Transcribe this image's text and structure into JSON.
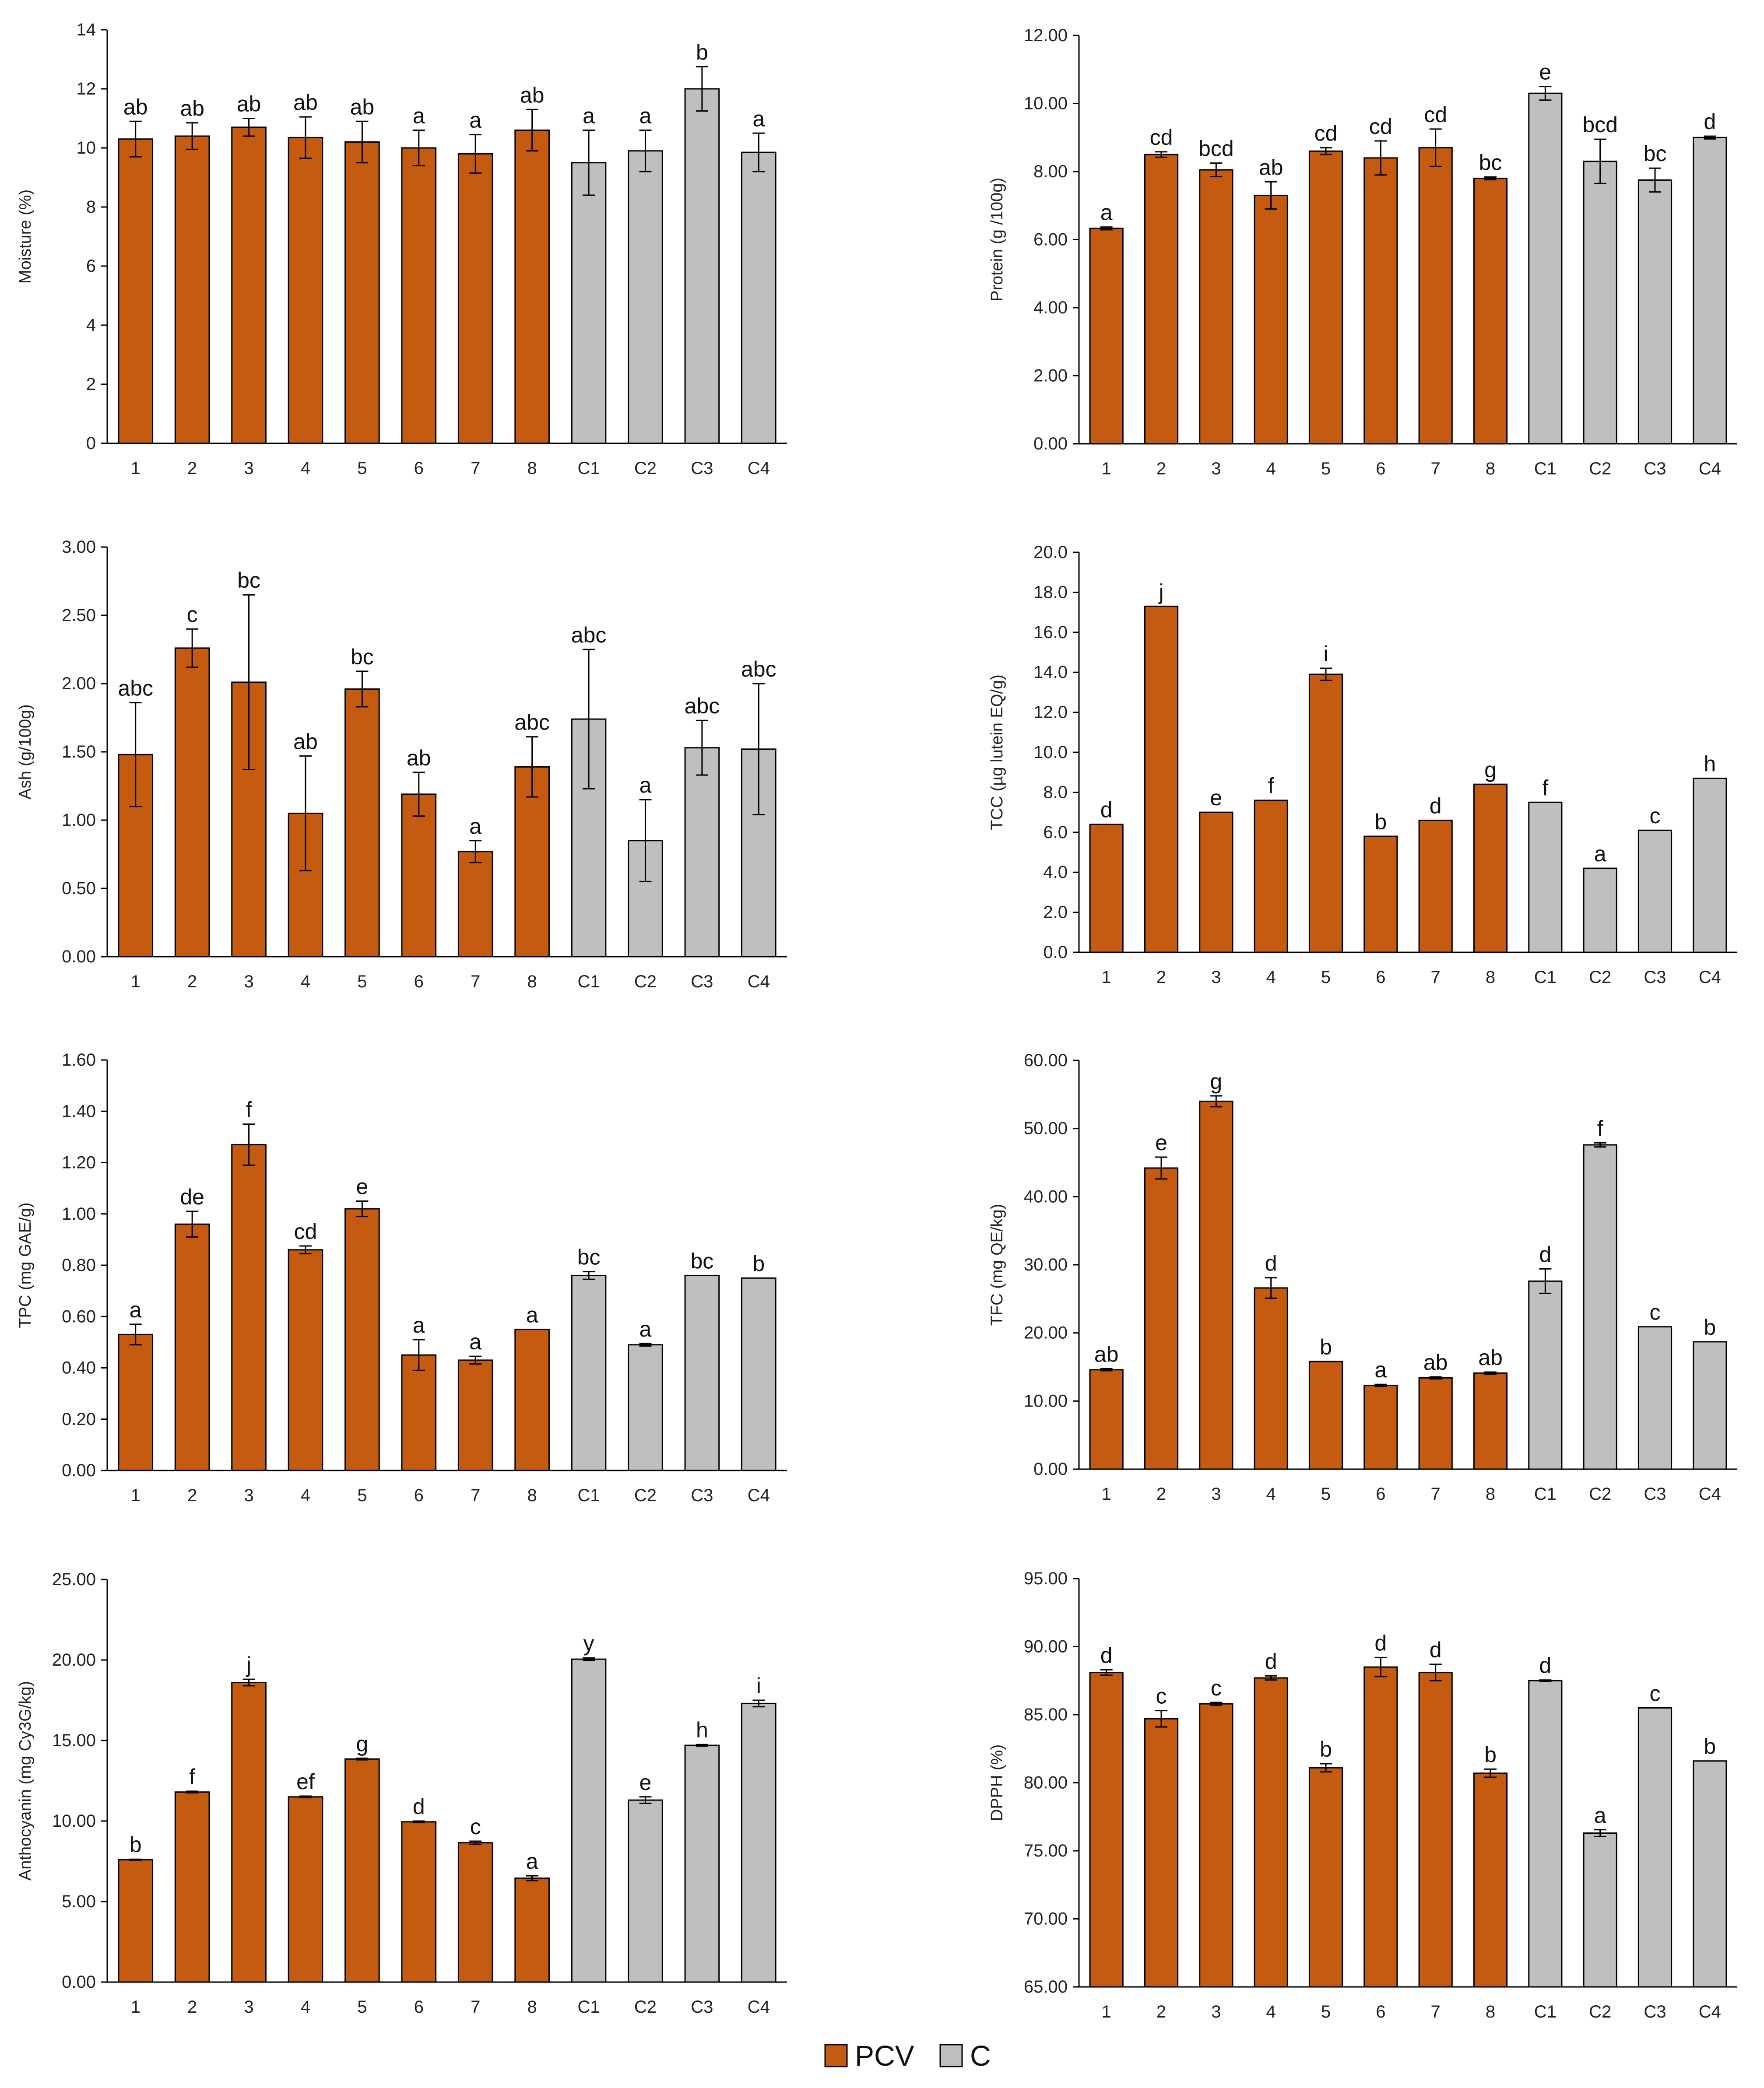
{
  "colors": {
    "PCV": "#c55a11",
    "C": "#bfbfbf",
    "edge": "#000000",
    "axis": "#000000"
  },
  "legend": [
    {
      "label": "PCV",
      "series": "PCV"
    },
    {
      "label": "C",
      "series": "C"
    }
  ],
  "chart_data": [
    {
      "type": "bar",
      "id": "moisture",
      "ylabel": "Moisture (%)",
      "categories": [
        "1",
        "2",
        "3",
        "4",
        "5",
        "6",
        "7",
        "8",
        "C1",
        "C2",
        "C3",
        "C4"
      ],
      "series_of": [
        "PCV",
        "PCV",
        "PCV",
        "PCV",
        "PCV",
        "PCV",
        "PCV",
        "PCV",
        "C",
        "C",
        "C",
        "C"
      ],
      "values": [
        10.3,
        10.4,
        10.7,
        10.35,
        10.2,
        10.0,
        9.8,
        10.6,
        9.5,
        9.9,
        12.0,
        9.85
      ],
      "errors": [
        0.6,
        0.45,
        0.3,
        0.7,
        0.7,
        0.6,
        0.65,
        0.7,
        1.1,
        0.7,
        0.75,
        0.65
      ],
      "labels": [
        "ab",
        "ab",
        "ab",
        "ab",
        "ab",
        "a",
        "a",
        "ab",
        "a",
        "a",
        "b",
        "a"
      ],
      "ylim": [
        0,
        14
      ],
      "yticks": [
        "0",
        "2",
        "4",
        "6",
        "8",
        "10",
        "12",
        "14"
      ]
    },
    {
      "type": "bar",
      "id": "protein",
      "ylabel": "Protein (g /100g)",
      "categories": [
        "1",
        "2",
        "3",
        "4",
        "5",
        "6",
        "7",
        "8",
        "C1",
        "C2",
        "C3",
        "C4"
      ],
      "series_of": [
        "PCV",
        "PCV",
        "PCV",
        "PCV",
        "PCV",
        "PCV",
        "PCV",
        "PCV",
        "C",
        "C",
        "C",
        "C"
      ],
      "values": [
        6.33,
        8.5,
        8.05,
        7.3,
        8.6,
        8.4,
        8.7,
        7.8,
        10.3,
        8.3,
        7.75,
        9.0
      ],
      "errors": [
        0.04,
        0.08,
        0.2,
        0.4,
        0.1,
        0.5,
        0.55,
        0.04,
        0.2,
        0.65,
        0.35,
        0.04
      ],
      "labels": [
        "a",
        "cd",
        "bcd",
        "ab",
        "cd",
        "cd",
        "cd",
        "bc",
        "e",
        "bcd",
        "bc",
        "d"
      ],
      "ylim": [
        0,
        12
      ],
      "yticks": [
        "0.00",
        "2.00",
        "4.00",
        "6.00",
        "8.00",
        "10.00",
        "12.00"
      ]
    },
    {
      "type": "bar",
      "id": "ash",
      "ylabel": "Ash (g/100g)",
      "categories": [
        "1",
        "2",
        "3",
        "4",
        "5",
        "6",
        "7",
        "8",
        "C1",
        "C2",
        "C3",
        "C4"
      ],
      "series_of": [
        "PCV",
        "PCV",
        "PCV",
        "PCV",
        "PCV",
        "PCV",
        "PCV",
        "PCV",
        "C",
        "C",
        "C",
        "C"
      ],
      "values": [
        1.48,
        2.26,
        2.01,
        1.05,
        1.96,
        1.19,
        0.77,
        1.39,
        1.74,
        0.85,
        1.53,
        1.52
      ],
      "errors": [
        0.38,
        0.14,
        0.64,
        0.42,
        0.13,
        0.16,
        0.08,
        0.22,
        0.51,
        0.3,
        0.2,
        0.48
      ],
      "labels": [
        "abc",
        "c",
        "bc",
        "ab",
        "bc",
        "ab",
        "a",
        "abc",
        "abc",
        "a",
        "abc",
        "abc"
      ],
      "ylim": [
        0,
        3
      ],
      "yticks": [
        "0.00",
        "0.50",
        "1.00",
        "1.50",
        "2.00",
        "2.50",
        "3.00"
      ]
    },
    {
      "type": "bar",
      "id": "tcc",
      "ylabel": "TCC (µg lutein EQ/g)",
      "categories": [
        "1",
        "2",
        "3",
        "4",
        "5",
        "6",
        "7",
        "8",
        "C1",
        "C2",
        "C3",
        "C4"
      ],
      "series_of": [
        "PCV",
        "PCV",
        "PCV",
        "PCV",
        "PCV",
        "PCV",
        "PCV",
        "PCV",
        "C",
        "C",
        "C",
        "C"
      ],
      "values": [
        6.4,
        17.3,
        7.0,
        7.6,
        13.9,
        5.8,
        6.6,
        8.4,
        7.5,
        4.2,
        6.1,
        8.7
      ],
      "errors": [
        0,
        0,
        0,
        0,
        0.3,
        0,
        0,
        0,
        0,
        0,
        0,
        0
      ],
      "labels": [
        "d",
        "j",
        "e",
        "f",
        "i",
        "b",
        "d",
        "g",
        "f",
        "a",
        "c",
        "h"
      ],
      "ylim": [
        0,
        20
      ],
      "yticks": [
        "0.0",
        "2.0",
        "4.0",
        "6.0",
        "8.0",
        "10.0",
        "12.0",
        "14.0",
        "16.0",
        "18.0",
        "20.0"
      ]
    },
    {
      "type": "bar",
      "id": "tpc",
      "ylabel": "TPC (mg GAE/g)",
      "categories": [
        "1",
        "2",
        "3",
        "4",
        "5",
        "6",
        "7",
        "8",
        "C1",
        "C2",
        "C3",
        "C4"
      ],
      "series_of": [
        "PCV",
        "PCV",
        "PCV",
        "PCV",
        "PCV",
        "PCV",
        "PCV",
        "PCV",
        "C",
        "C",
        "C",
        "C"
      ],
      "values": [
        0.53,
        0.96,
        1.27,
        0.86,
        1.02,
        0.45,
        0.43,
        0.55,
        0.76,
        0.49,
        0.76,
        0.75
      ],
      "errors": [
        0.04,
        0.05,
        0.08,
        0.015,
        0.03,
        0.06,
        0.015,
        0,
        0.015,
        0.005,
        0,
        0
      ],
      "labels": [
        "a",
        "de",
        "f",
        "cd",
        "e",
        "a",
        "a",
        "a",
        "bc",
        "a",
        "bc",
        "b"
      ],
      "ylim": [
        0,
        1.6
      ],
      "yticks": [
        "0.00",
        "0.20",
        "0.40",
        "0.60",
        "0.80",
        "1.00",
        "1.20",
        "1.40",
        "1.60"
      ]
    },
    {
      "type": "bar",
      "id": "tfc",
      "ylabel": "TFC (mg QE/kg)",
      "categories": [
        "1",
        "2",
        "3",
        "4",
        "5",
        "6",
        "7",
        "8",
        "C1",
        "C2",
        "C3",
        "C4"
      ],
      "series_of": [
        "PCV",
        "PCV",
        "PCV",
        "PCV",
        "PCV",
        "PCV",
        "PCV",
        "PCV",
        "C",
        "C",
        "C",
        "C"
      ],
      "values": [
        14.6,
        44.2,
        54.0,
        26.6,
        15.8,
        12.3,
        13.4,
        14.1,
        27.6,
        47.6,
        20.9,
        18.7
      ],
      "errors": [
        0.15,
        1.6,
        0.8,
        1.5,
        0,
        0.15,
        0.15,
        0.15,
        1.8,
        0.3,
        0,
        0
      ],
      "labels": [
        "ab",
        "e",
        "g",
        "d",
        "b",
        "a",
        "ab",
        "ab",
        "d",
        "f",
        "c",
        "b"
      ],
      "ylim": [
        0,
        60
      ],
      "yticks": [
        "0.00",
        "10.00",
        "20.00",
        "30.00",
        "40.00",
        "50.00",
        "60.00"
      ]
    },
    {
      "type": "bar",
      "id": "anthocyanin",
      "ylabel": "Anthocyanin (mg Cy3G/kg)",
      "categories": [
        "1",
        "2",
        "3",
        "4",
        "5",
        "6",
        "7",
        "8",
        "C1",
        "C2",
        "C3",
        "C4"
      ],
      "series_of": [
        "PCV",
        "PCV",
        "PCV",
        "PCV",
        "PCV",
        "PCV",
        "PCV",
        "PCV",
        "C",
        "C",
        "C",
        "C"
      ],
      "values": [
        7.6,
        11.8,
        18.6,
        11.5,
        13.85,
        9.95,
        8.65,
        6.45,
        20.05,
        11.3,
        14.7,
        17.3
      ],
      "errors": [
        0.03,
        0.05,
        0.2,
        0.05,
        0.05,
        0.05,
        0.1,
        0.15,
        0.08,
        0.2,
        0.05,
        0.2
      ],
      "labels": [
        "b",
        "f",
        "j",
        "ef",
        "g",
        "d",
        "c",
        "a",
        "y",
        "e",
        "h",
        "i"
      ],
      "ylim": [
        0,
        25
      ],
      "yticks": [
        "0.00",
        "5.00",
        "10.00",
        "15.00",
        "20.00",
        "25.00"
      ]
    },
    {
      "type": "bar",
      "id": "dpph",
      "ylabel": "DPPH (%)",
      "categories": [
        "1",
        "2",
        "3",
        "4",
        "5",
        "6",
        "7",
        "8",
        "C1",
        "C2",
        "C3",
        "C4"
      ],
      "series_of": [
        "PCV",
        "PCV",
        "PCV",
        "PCV",
        "PCV",
        "PCV",
        "PCV",
        "PCV",
        "C",
        "C",
        "C",
        "C"
      ],
      "values": [
        88.1,
        84.7,
        85.8,
        87.7,
        81.1,
        88.5,
        88.1,
        80.7,
        87.5,
        76.3,
        85.5,
        81.6
      ],
      "errors": [
        0.2,
        0.6,
        0.1,
        0.15,
        0.3,
        0.7,
        0.6,
        0.3,
        0.05,
        0.25,
        0,
        0
      ],
      "labels": [
        "d",
        "c",
        "c",
        "d",
        "b",
        "d",
        "d",
        "b",
        "d",
        "a",
        "c",
        "b"
      ],
      "ylim": [
        65,
        95
      ],
      "yticks": [
        "65.00",
        "70.00",
        "75.00",
        "80.00",
        "85.00",
        "90.00",
        "95.00"
      ]
    }
  ]
}
